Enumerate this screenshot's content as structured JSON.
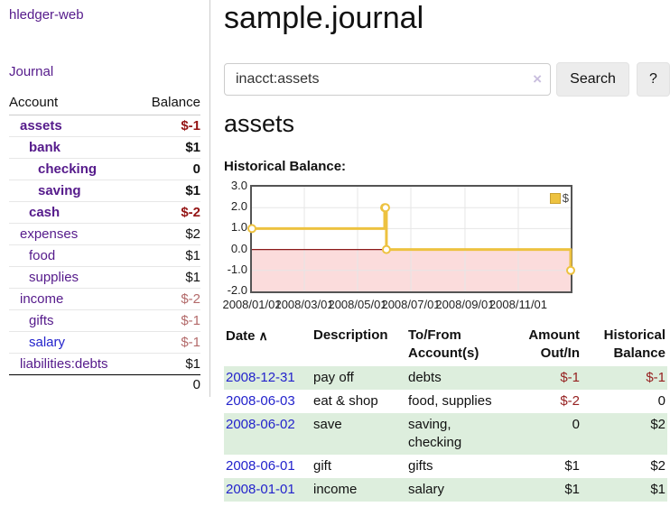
{
  "app": {
    "brand": "hledger-web"
  },
  "sidebar": {
    "journal_link": "Journal",
    "accounts": {
      "col_account": "Account",
      "col_balance": "Balance",
      "rows": [
        {
          "name": "assets",
          "depth": 1,
          "bold": true,
          "link_color": "purple",
          "balance": "$-1",
          "balance_style": "neg-b"
        },
        {
          "name": "bank",
          "depth": 2,
          "bold": true,
          "link_color": "purple",
          "balance": "$1",
          "balance_style": "pos-b"
        },
        {
          "name": "checking",
          "depth": 3,
          "bold": true,
          "link_color": "purple",
          "balance": "0",
          "balance_style": "pos-b"
        },
        {
          "name": "saving",
          "depth": 3,
          "bold": true,
          "link_color": "purple",
          "balance": "$1",
          "balance_style": "pos-b"
        },
        {
          "name": "cash",
          "depth": 2,
          "bold": true,
          "link_color": "purple",
          "balance": "$-2",
          "balance_style": "neg-b"
        },
        {
          "name": "expenses",
          "depth": 1,
          "bold": false,
          "link_color": "purple",
          "balance": "$2",
          "balance_style": "pos"
        },
        {
          "name": "food",
          "depth": 2,
          "bold": false,
          "link_color": "purple",
          "balance": "$1",
          "balance_style": "pos"
        },
        {
          "name": "supplies",
          "depth": 2,
          "bold": false,
          "link_color": "purple",
          "balance": "$1",
          "balance_style": "pos"
        },
        {
          "name": "income",
          "depth": 1,
          "bold": false,
          "link_color": "purple",
          "balance": "$-2",
          "balance_style": "neg"
        },
        {
          "name": "gifts",
          "depth": 2,
          "bold": false,
          "link_color": "purple",
          "balance": "$-1",
          "balance_style": "neg"
        },
        {
          "name": "salary",
          "depth": 2,
          "bold": false,
          "link_color": "blue",
          "balance": "$-1",
          "balance_style": "neg"
        },
        {
          "name": "liabilities:debts",
          "depth": 1,
          "bold": false,
          "link_color": "purple",
          "balance": "$1",
          "balance_style": "pos"
        }
      ],
      "total": "0"
    }
  },
  "main": {
    "title": "sample.journal",
    "search": {
      "query": "inacct:assets",
      "clear_icon": "×",
      "search_button": "Search",
      "help_button": "?"
    },
    "account_heading": "assets",
    "section_label": "Historical Balance:"
  },
  "chart_data": {
    "type": "line",
    "title": "Historical Balance of assets",
    "legend": [
      {
        "label": "$",
        "color": "#edc240"
      }
    ],
    "legend_position": "top-right",
    "grid": true,
    "x_range": [
      "2008-01-01",
      "2008-12-31"
    ],
    "ylim": [
      -2,
      3
    ],
    "y_ticks": [
      "3.0",
      "2.0",
      "1.0",
      "0.0",
      "-1.0",
      "-2.0"
    ],
    "x_ticks": [
      "2008/01/01",
      "2008/03/01",
      "2008/05/01",
      "2008/07/01",
      "2008/09/01",
      "2008/11/01"
    ],
    "series": [
      {
        "name": "$",
        "color": "#edc240",
        "step": true,
        "points": [
          {
            "x": "2008-01-01",
            "y": 1
          },
          {
            "x": "2008-06-01",
            "y": 2
          },
          {
            "x": "2008-06-02",
            "y": 2
          },
          {
            "x": "2008-06-03",
            "y": 0
          },
          {
            "x": "2008-12-31",
            "y": -1
          }
        ]
      }
    ],
    "negative_region_color": "#fbdcdc",
    "zero_line_color": "#8b1a1a"
  },
  "register": {
    "headers": {
      "date": "Date",
      "sort_icon": "∧",
      "description": "Description",
      "accounts": "To/From Account(s)",
      "amount": "Amount Out/In",
      "balance": "Historical Balance"
    },
    "rows": [
      {
        "date": "2008-12-31",
        "description": "pay off",
        "accounts": "debts",
        "amount": "$-1",
        "amount_negative": true,
        "balance": "$-1",
        "balance_negative": true
      },
      {
        "date": "2008-06-03",
        "description": "eat & shop",
        "accounts": "food, supplies",
        "amount": "$-2",
        "amount_negative": true,
        "balance": "0",
        "balance_negative": false
      },
      {
        "date": "2008-06-02",
        "description": "save",
        "accounts": "saving, checking",
        "amount": "0",
        "amount_negative": false,
        "balance": "$2",
        "balance_negative": false
      },
      {
        "date": "2008-06-01",
        "description": "gift",
        "accounts": "gifts",
        "amount": "$1",
        "amount_negative": false,
        "balance": "$2",
        "balance_negative": false
      },
      {
        "date": "2008-01-01",
        "description": "income",
        "accounts": "salary",
        "amount": "$1",
        "amount_negative": false,
        "balance": "$1",
        "balance_negative": false
      }
    ]
  }
}
